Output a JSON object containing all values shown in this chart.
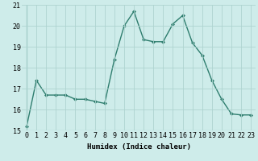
{
  "x": [
    0,
    1,
    2,
    3,
    4,
    5,
    6,
    7,
    8,
    9,
    10,
    11,
    12,
    13,
    14,
    15,
    16,
    17,
    18,
    19,
    20,
    21,
    22,
    23
  ],
  "y": [
    15.2,
    17.4,
    16.7,
    16.7,
    16.7,
    16.5,
    16.5,
    16.4,
    16.3,
    18.4,
    20.0,
    20.7,
    19.35,
    19.25,
    19.25,
    20.1,
    20.5,
    19.2,
    18.6,
    17.4,
    16.5,
    15.8,
    15.75,
    15.75
  ],
  "line_color": "#2e7d6e",
  "marker": "D",
  "marker_size": 2.0,
  "linewidth": 1.0,
  "xlabel": "Humidex (Indice chaleur)",
  "xlim": [
    -0.5,
    23.5
  ],
  "ylim": [
    15,
    21
  ],
  "yticks": [
    15,
    16,
    17,
    18,
    19,
    20,
    21
  ],
  "xtick_labels": [
    "0",
    "1",
    "2",
    "3",
    "4",
    "5",
    "6",
    "7",
    "8",
    "9",
    "10",
    "11",
    "12",
    "13",
    "14",
    "15",
    "16",
    "17",
    "18",
    "19",
    "20",
    "21",
    "22",
    "23"
  ],
  "background_color": "#ceecea",
  "grid_color": "#aed4d0",
  "xlabel_fontsize": 6.5,
  "tick_fontsize": 6.0
}
